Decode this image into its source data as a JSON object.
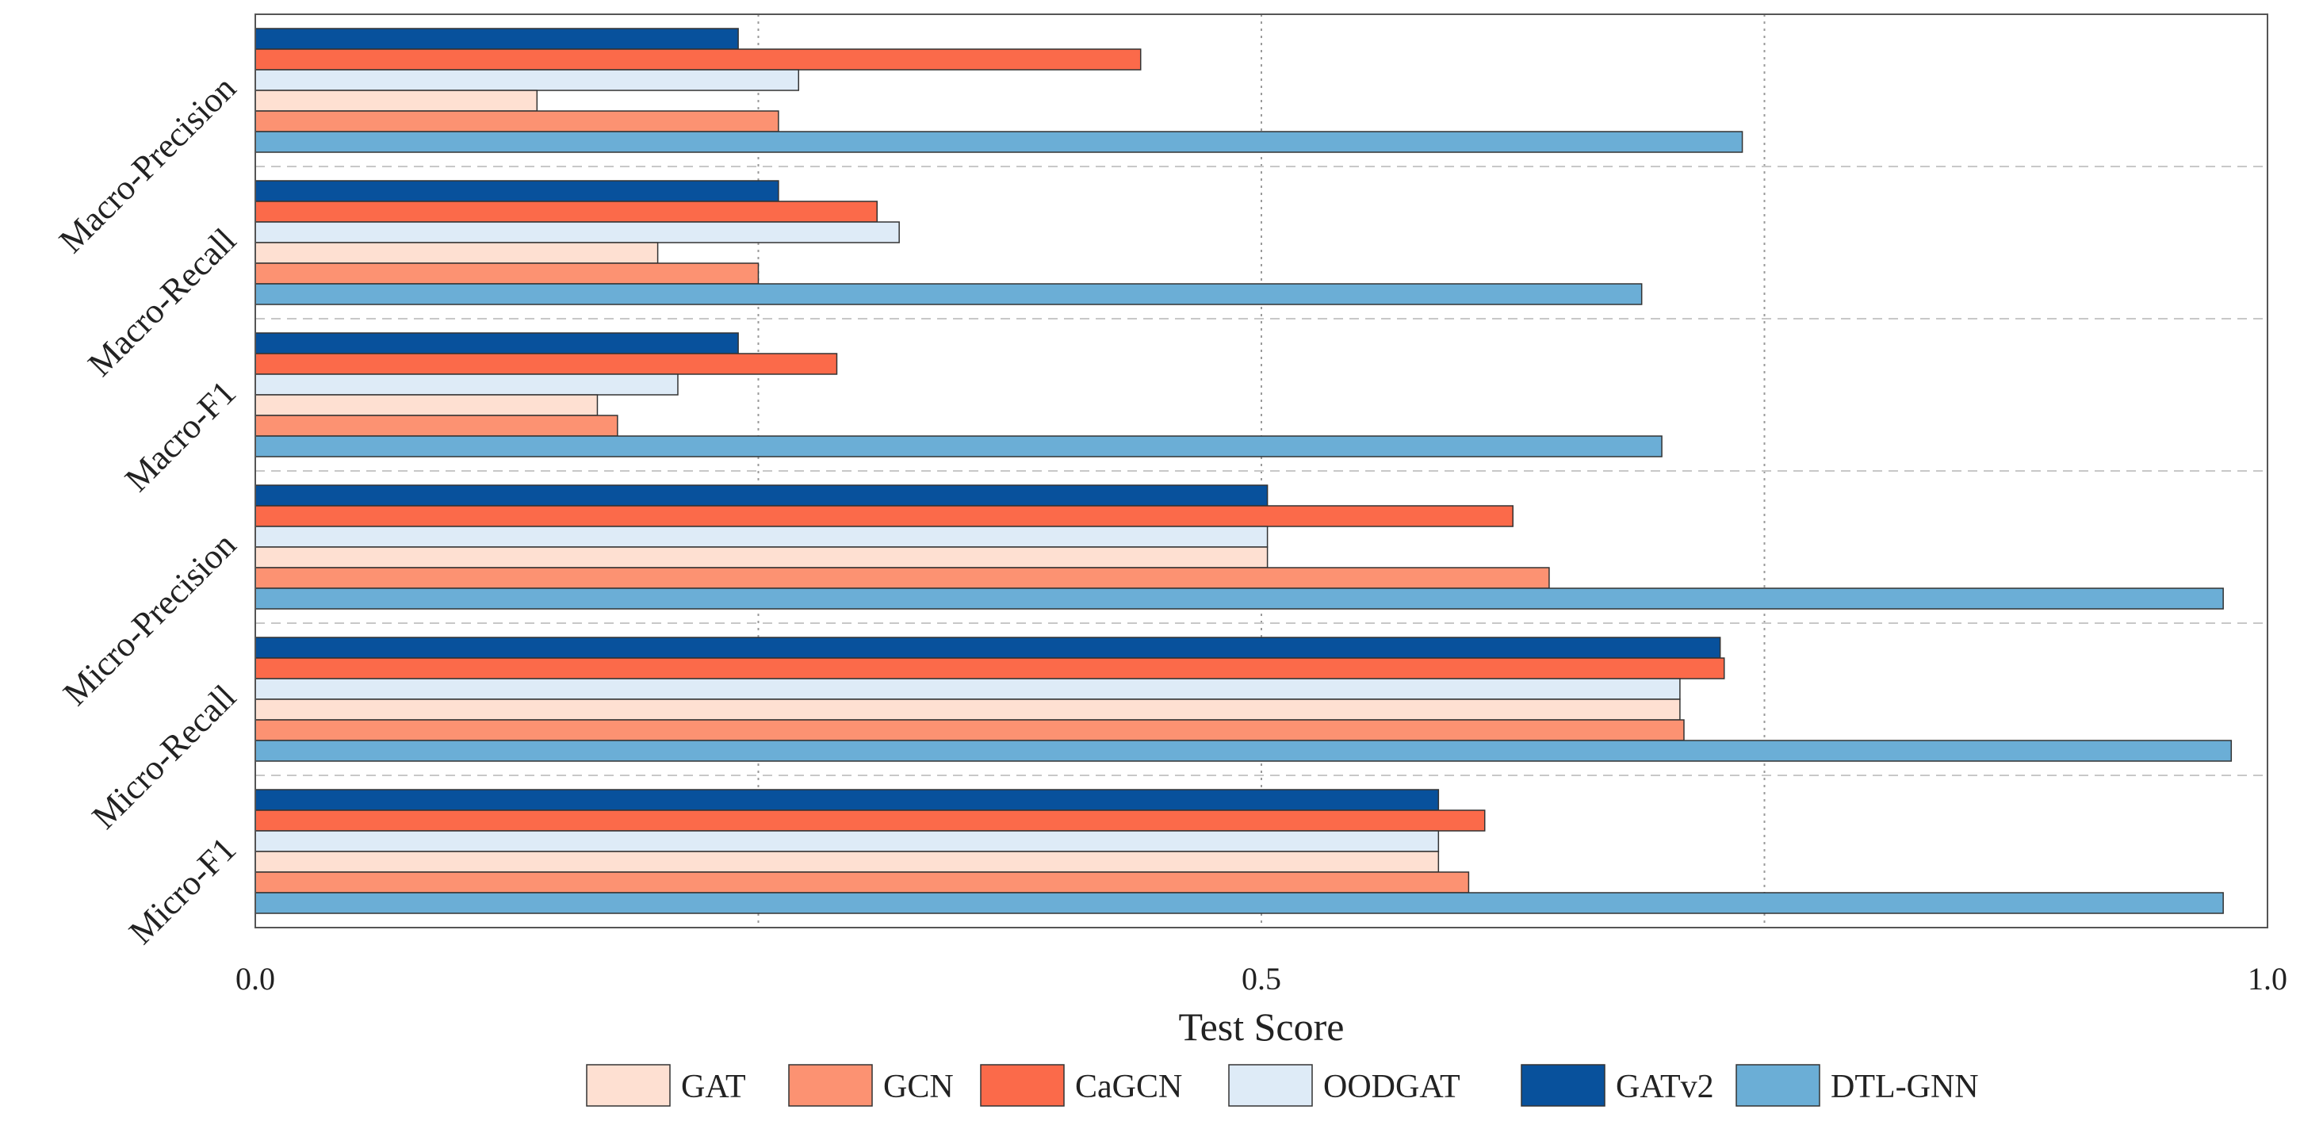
{
  "chart_data": {
    "type": "bar",
    "orientation": "horizontal",
    "title": "",
    "xlabel": "Test Score",
    "ylabel": "",
    "xlim": [
      0.0,
      1.0
    ],
    "xticks": [
      0.0,
      0.5,
      1.0
    ],
    "xtick_labels": [
      "0.0",
      "0.5",
      "1.0"
    ],
    "grid_lines_x": [
      0.25,
      0.5,
      0.75
    ],
    "grid": true,
    "legend_position": "bottom",
    "categories": [
      "Macro-Precision",
      "Macro-Recall",
      "Macro-F1",
      "Micro-Precision",
      "Micro-Recall",
      "Micro-F1"
    ],
    "series": [
      {
        "name": "GATv2",
        "color": "#08519c",
        "values": [
          0.24,
          0.26,
          0.24,
          0.503,
          0.728,
          0.588
        ]
      },
      {
        "name": "CaGCN",
        "color": "#fb6a4a",
        "values": [
          0.44,
          0.309,
          0.289,
          0.625,
          0.73,
          0.611
        ]
      },
      {
        "name": "OODGAT",
        "color": "#deebf7",
        "values": [
          0.27,
          0.32,
          0.21,
          0.503,
          0.708,
          0.588
        ]
      },
      {
        "name": "GAT",
        "color": "#fee0d2",
        "values": [
          0.14,
          0.2,
          0.17,
          0.503,
          0.708,
          0.588
        ]
      },
      {
        "name": "GCN",
        "color": "#fc9272",
        "values": [
          0.26,
          0.25,
          0.18,
          0.643,
          0.71,
          0.603
        ]
      },
      {
        "name": "DTL-GNN",
        "color": "#6baed6",
        "values": [
          0.739,
          0.689,
          0.699,
          0.978,
          0.982,
          0.978
        ]
      }
    ],
    "legend_order": [
      "GAT",
      "GCN",
      "CaGCN",
      "OODGAT",
      "GATv2",
      "DTL-GNN"
    ]
  }
}
